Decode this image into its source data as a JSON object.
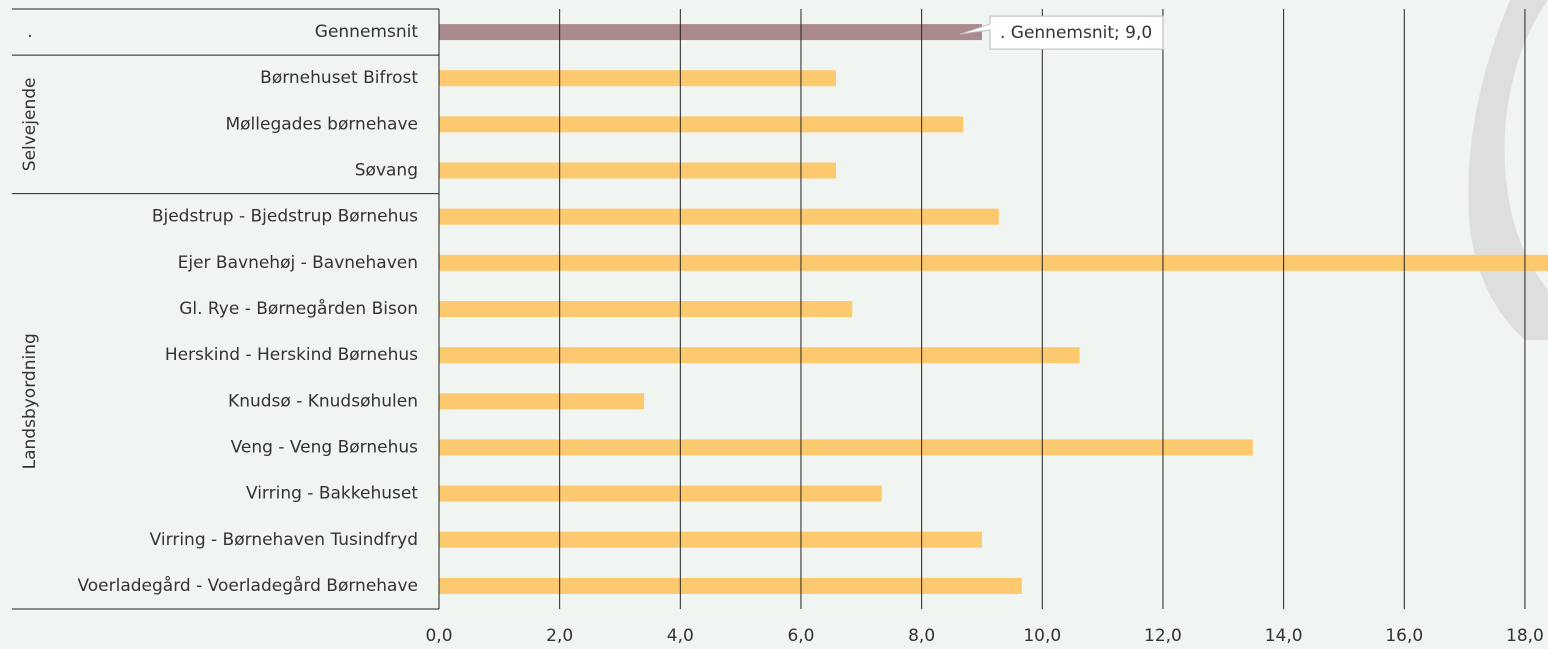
{
  "chart_data": {
    "type": "bar",
    "orientation": "horizontal",
    "groups": [
      {
        "name": ".",
        "count": 1
      },
      {
        "name": "Selvejende",
        "count": 3
      },
      {
        "name": "Landsbyordning",
        "count": 9
      }
    ],
    "categories": [
      "Gennemsnit",
      "Børnehuset Bifrost",
      "Møllegades børnehave",
      "Søvang",
      "Bjedstrup - Bjedstrup Børnehus",
      "Ejer Bavnehøj - Bavnehaven",
      "Gl. Rye - Børnegården Bison",
      "Herskind - Herskind Børnehus",
      "Knudsø - Knudsøhulen",
      "Veng  - Veng Børnehus",
      "Virring - Bakkehuset",
      "Virring - Børnehaven Tusindfryd",
      "Voerladegård - Voerladegård Børnehave"
    ],
    "values": [
      9.0,
      6.58,
      8.69,
      6.58,
      9.28,
      19,
      6.85,
      10.62,
      3.4,
      13.49,
      7.34,
      9.0,
      9.66
    ],
    "value_labels": [
      ". Gennemsnit; 9,0",
      null,
      null,
      null,
      null,
      null,
      null,
      null,
      null,
      null,
      null,
      null,
      null
    ],
    "colors": [
      "#ab8a8f",
      "#fdc96f",
      "#fdc96f",
      "#fdc96f",
      "#fdc96f",
      "#fdc96f",
      "#fdc96f",
      "#fdc96f",
      "#fdc96f",
      "#fdc96f",
      "#fdc96f",
      "#fdc96f",
      "#fdc96f"
    ],
    "xlim": [
      0,
      18.38
    ],
    "xticks": [
      {
        "value": 0,
        "label": "0,0"
      },
      {
        "value": 2,
        "label": "2,0"
      },
      {
        "value": 4,
        "label": "4,0"
      },
      {
        "value": 6,
        "label": "6,0"
      },
      {
        "value": 8,
        "label": "8,0"
      },
      {
        "value": 10,
        "label": "10,0"
      },
      {
        "value": 12,
        "label": "12,0"
      },
      {
        "value": 14,
        "label": "14,0"
      },
      {
        "value": 16,
        "label": "16,0"
      },
      {
        "value": 18,
        "label": "18,0"
      }
    ],
    "grid": true
  }
}
